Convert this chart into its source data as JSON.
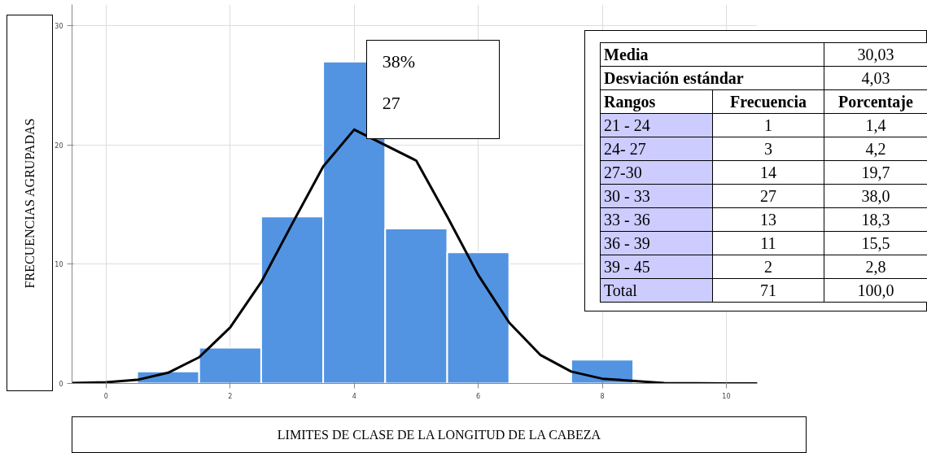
{
  "chart_data": {
    "type": "histogram",
    "xlabel": "LIMITES DE CLASE DE LA LONGITUD DE LA CABEZA",
    "ylabel": "FRECUENCIAS AGRUPADAS",
    "bins": [
      0.5,
      1.5,
      2.5,
      3.5,
      4.5,
      5.5,
      6.5,
      7.5,
      8.5
    ],
    "values": [
      1,
      3,
      14,
      27,
      13,
      11,
      0,
      2
    ],
    "color": "#5294e2",
    "series": [
      {
        "type": "line",
        "color": "#000000",
        "x": [
          -0.55,
          0,
          0.5,
          1,
          1.5,
          2,
          2.5,
          3,
          3.5,
          4,
          5,
          5.5,
          6,
          6.5,
          7,
          7.5,
          8,
          9,
          10,
          10.5
        ],
        "values": [
          0.03,
          0.1,
          0.3,
          0.9,
          2.2,
          4.7,
          8.5,
          13.4,
          18.2,
          21.3,
          18.7,
          14.0,
          9.1,
          5.1,
          2.4,
          1.0,
          0.4,
          0.03,
          0,
          0
        ]
      }
    ],
    "xlim": [
      -0.55,
      10.5
    ],
    "ylim": [
      0,
      31.8
    ],
    "xticks": [
      0,
      2,
      4,
      6,
      8,
      10
    ],
    "yticks": [
      0,
      10,
      20,
      30
    ],
    "grid": true,
    "annotations": [
      {
        "text": "38%",
        "x": 4,
        "y": 27
      },
      {
        "text": "27",
        "x": 4,
        "y": 27
      },
      "Media",
      "30,03",
      "Desviación estándar",
      "4,03",
      "Rangos",
      "Frecuencia",
      "Porcentaje",
      "21 - 24",
      "1",
      "1,4",
      "24- 27",
      "3",
      "4,2",
      "27-30",
      "14",
      "19,7",
      "30 - 33",
      "27",
      "38,0",
      "33 - 36",
      "13",
      "18,3",
      "36 - 39",
      "11",
      "15,5",
      "39 - 45",
      "2",
      "2,8",
      "Total",
      "71",
      "100,0"
    ]
  }
}
